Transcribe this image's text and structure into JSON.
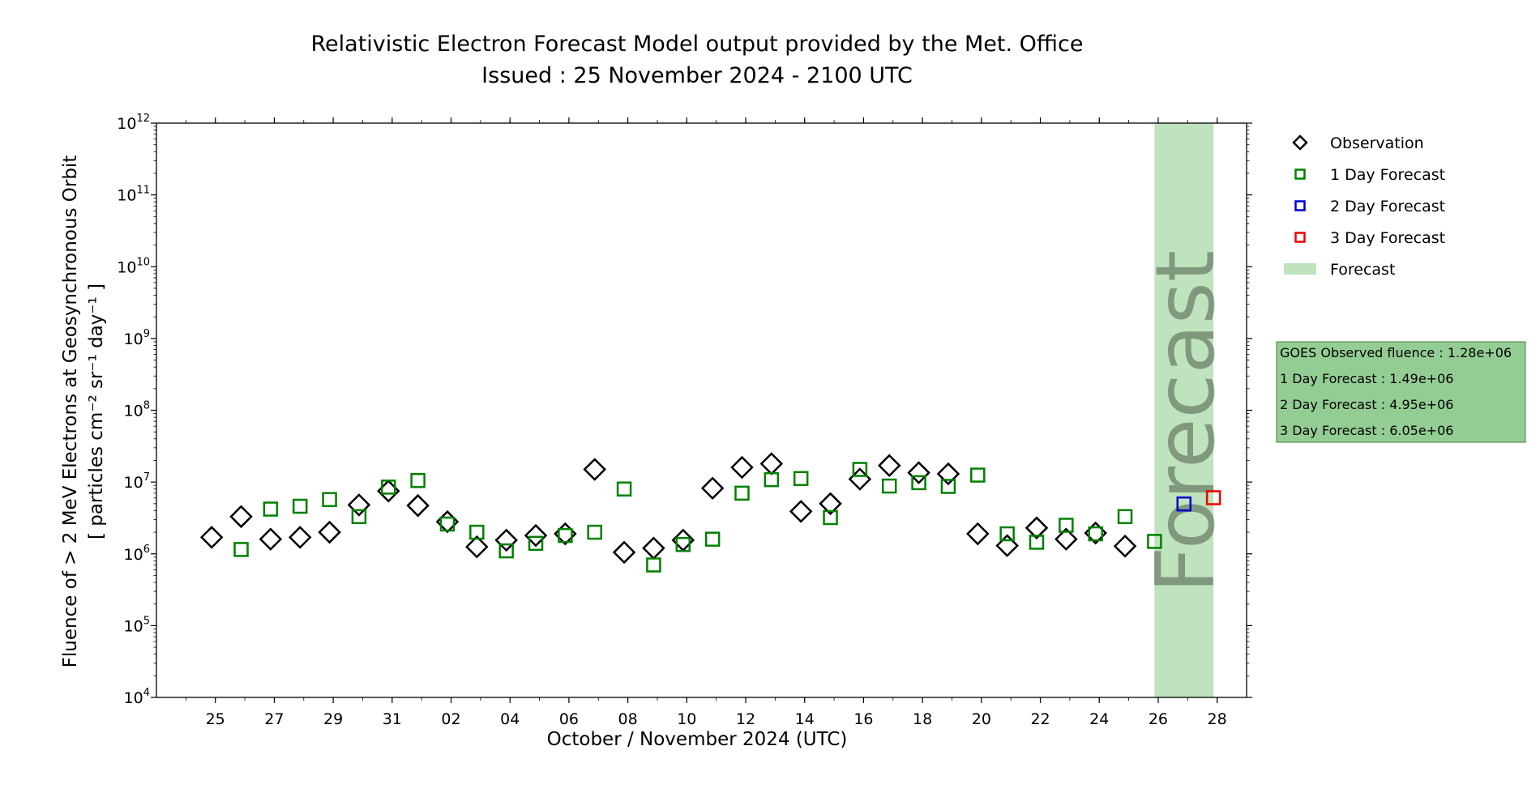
{
  "chart_data": {
    "type": "scatter",
    "title": [
      "Relativistic Electron Forecast Model output provided by the Met. Office",
      "Issued : 25 November 2024 - 2100 UTC"
    ],
    "xlabel": "October / November 2024 (UTC)",
    "ylabel": [
      "Fluence of > 2 MeV Electrons at Geosynchronous Orbit",
      "[ particles cm⁻² sr⁻¹ day⁻¹ ]"
    ],
    "y_scale": "log",
    "ylim": [
      10000,
      1000000000000
    ],
    "y_ticks": [
      {
        "value": 10000,
        "base": "10",
        "exp": "4"
      },
      {
        "value": 100000,
        "base": "10",
        "exp": "5"
      },
      {
        "value": 1000000,
        "base": "10",
        "exp": "6"
      },
      {
        "value": 10000000,
        "base": "10",
        "exp": "7"
      },
      {
        "value": 100000000,
        "base": "10",
        "exp": "8"
      },
      {
        "value": 1000000000,
        "base": "10",
        "exp": "9"
      },
      {
        "value": 10000000000,
        "base": "10",
        "exp": "10"
      },
      {
        "value": 100000000000,
        "base": "10",
        "exp": "11"
      },
      {
        "value": 1000000000000,
        "base": "10",
        "exp": "12"
      }
    ],
    "xlim": [
      "2024-10-23",
      "2024-11-29"
    ],
    "x_ticks": [
      {
        "date": "2024-10-25",
        "label": "25"
      },
      {
        "date": "2024-10-27",
        "label": "27"
      },
      {
        "date": "2024-10-29",
        "label": "29"
      },
      {
        "date": "2024-10-31",
        "label": "31"
      },
      {
        "date": "2024-11-02",
        "label": "02"
      },
      {
        "date": "2024-11-04",
        "label": "04"
      },
      {
        "date": "2024-11-06",
        "label": "06"
      },
      {
        "date": "2024-11-08",
        "label": "08"
      },
      {
        "date": "2024-11-10",
        "label": "10"
      },
      {
        "date": "2024-11-12",
        "label": "12"
      },
      {
        "date": "2024-11-14",
        "label": "14"
      },
      {
        "date": "2024-11-16",
        "label": "16"
      },
      {
        "date": "2024-11-18",
        "label": "18"
      },
      {
        "date": "2024-11-20",
        "label": "20"
      },
      {
        "date": "2024-11-22",
        "label": "22"
      },
      {
        "date": "2024-11-24",
        "label": "24"
      },
      {
        "date": "2024-11-26",
        "label": "26"
      },
      {
        "date": "2024-11-28",
        "label": "28"
      }
    ],
    "forecast_band": {
      "start": "2024-11-25T21:00",
      "end": "2024-11-27T21:00",
      "color": "#bfe3bd",
      "label": "Forecast"
    },
    "series": [
      {
        "name": "Observation",
        "marker": "diamond",
        "color": "#000000",
        "points": [
          [
            "2024-10-24T21:00",
            1700000
          ],
          [
            "2024-10-25T21:00",
            3300000
          ],
          [
            "2024-10-26T21:00",
            1600000
          ],
          [
            "2024-10-27T21:00",
            1700000
          ],
          [
            "2024-10-28T21:00",
            2000000
          ],
          [
            "2024-10-29T21:00",
            4800000
          ],
          [
            "2024-10-30T21:00",
            7500000
          ],
          [
            "2024-10-31T21:00",
            4700000
          ],
          [
            "2024-11-01T21:00",
            2800000
          ],
          [
            "2024-11-02T21:00",
            1250000
          ],
          [
            "2024-11-03T21:00",
            1550000
          ],
          [
            "2024-11-04T21:00",
            1800000
          ],
          [
            "2024-11-05T21:00",
            1900000
          ],
          [
            "2024-11-06T21:00",
            15000000
          ],
          [
            "2024-11-07T21:00",
            1050000
          ],
          [
            "2024-11-08T21:00",
            1200000
          ],
          [
            "2024-11-09T21:00",
            1550000
          ],
          [
            "2024-11-10T21:00",
            8200000
          ],
          [
            "2024-11-11T21:00",
            16000000
          ],
          [
            "2024-11-12T21:00",
            18000000
          ],
          [
            "2024-11-13T21:00",
            3900000
          ],
          [
            "2024-11-14T21:00",
            5000000
          ],
          [
            "2024-11-15T21:00",
            11000000
          ],
          [
            "2024-11-16T21:00",
            17000000
          ],
          [
            "2024-11-17T21:00",
            13500000
          ],
          [
            "2024-11-18T21:00",
            13000000
          ],
          [
            "2024-11-19T21:00",
            1900000
          ],
          [
            "2024-11-20T21:00",
            1300000
          ],
          [
            "2024-11-21T21:00",
            2300000
          ],
          [
            "2024-11-22T21:00",
            1600000
          ],
          [
            "2024-11-23T21:00",
            1950000
          ],
          [
            "2024-11-24T21:00",
            1280000
          ]
        ]
      },
      {
        "name": "1 Day Forecast",
        "marker": "square",
        "color": "#008000",
        "points": [
          [
            "2024-10-25T21:00",
            1150000
          ],
          [
            "2024-10-26T21:00",
            4200000
          ],
          [
            "2024-10-27T21:00",
            4600000
          ],
          [
            "2024-10-28T21:00",
            5700000
          ],
          [
            "2024-10-29T21:00",
            3300000
          ],
          [
            "2024-10-30T21:00",
            8500000
          ],
          [
            "2024-10-31T21:00",
            10500000
          ],
          [
            "2024-11-01T21:00",
            2600000
          ],
          [
            "2024-11-02T21:00",
            2000000
          ],
          [
            "2024-11-03T21:00",
            1100000
          ],
          [
            "2024-11-04T21:00",
            1400000
          ],
          [
            "2024-11-05T21:00",
            1800000
          ],
          [
            "2024-11-06T21:00",
            2000000
          ],
          [
            "2024-11-07T21:00",
            8000000
          ],
          [
            "2024-11-08T21:00",
            700000
          ],
          [
            "2024-11-09T21:00",
            1350000
          ],
          [
            "2024-11-10T21:00",
            1600000
          ],
          [
            "2024-11-11T21:00",
            7000000
          ],
          [
            "2024-11-12T21:00",
            10800000
          ],
          [
            "2024-11-13T21:00",
            11200000
          ],
          [
            "2024-11-14T21:00",
            3200000
          ],
          [
            "2024-11-15T21:00",
            15000000
          ],
          [
            "2024-11-16T21:00",
            8800000
          ],
          [
            "2024-11-17T21:00",
            9800000
          ],
          [
            "2024-11-18T21:00",
            8700000
          ],
          [
            "2024-11-19T21:00",
            12500000
          ],
          [
            "2024-11-20T21:00",
            1900000
          ],
          [
            "2024-11-21T21:00",
            1450000
          ],
          [
            "2024-11-22T21:00",
            2500000
          ],
          [
            "2024-11-23T21:00",
            1900000
          ],
          [
            "2024-11-24T21:00",
            3300000
          ],
          [
            "2024-11-25T21:00",
            1490000
          ]
        ]
      },
      {
        "name": "2 Day Forecast",
        "marker": "square",
        "color": "#0000cc",
        "points": [
          [
            "2024-11-26T21:00",
            4950000
          ]
        ]
      },
      {
        "name": "3 Day Forecast",
        "marker": "square",
        "color": "#ee0000",
        "points": [
          [
            "2024-11-27T21:00",
            6050000
          ]
        ]
      }
    ],
    "legend": {
      "placement": "outside-right",
      "entries": [
        {
          "label": "Observation",
          "marker": "diamond",
          "color": "#000000"
        },
        {
          "label": "1 Day Forecast",
          "marker": "square",
          "color": "#008000"
        },
        {
          "label": "2 Day Forecast",
          "marker": "square",
          "color": "#0000cc"
        },
        {
          "label": "3 Day Forecast",
          "marker": "square",
          "color": "#ee0000"
        },
        {
          "label": "Forecast",
          "marker": "patch",
          "color": "#bfe3bd"
        }
      ]
    },
    "info_box": {
      "background": "#93cd93",
      "lines": [
        "GOES Observed fluence : 1.28e+06",
        "1 Day Forecast : 1.49e+06",
        "2 Day Forecast : 4.95e+06",
        "3 Day Forecast : 6.05e+06"
      ]
    },
    "grid": false
  }
}
